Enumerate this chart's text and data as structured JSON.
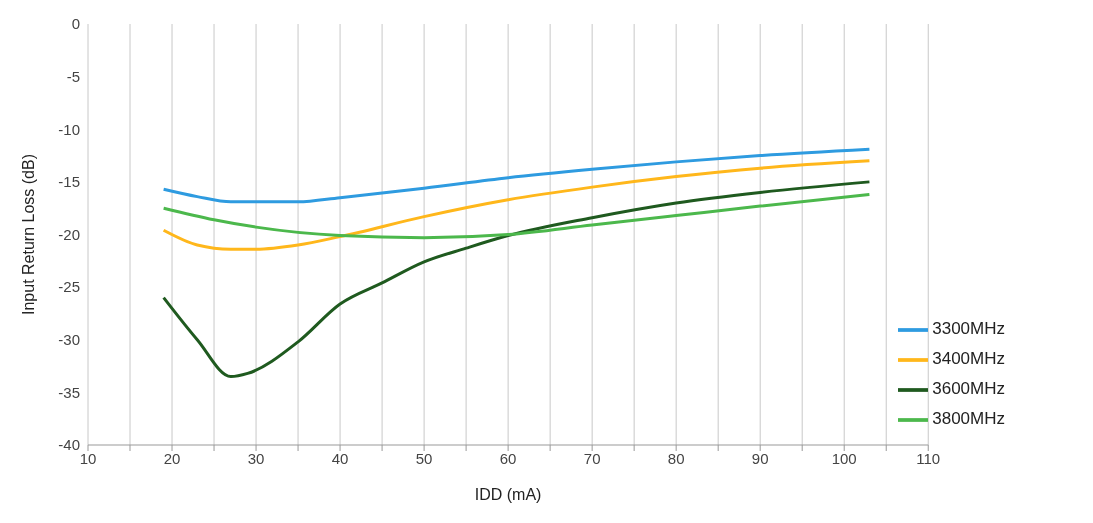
{
  "chart_data": {
    "type": "line",
    "xlabel": "IDD (mA)",
    "ylabel": "Input Return Loss (dB)",
    "xlim": [
      10,
      110
    ],
    "xticks": [
      10,
      {
        "value": 15,
        "label": null
      },
      20,
      {
        "value": 25,
        "label": null
      },
      30,
      {
        "value": 35,
        "label": null
      },
      40,
      {
        "value": 45,
        "label": null
      },
      50,
      {
        "value": 55,
        "label": null
      },
      60,
      {
        "value": 65,
        "label": null
      },
      70,
      {
        "value": 75,
        "label": null
      },
      80,
      {
        "value": 85,
        "label": null
      },
      90,
      {
        "value": 95,
        "label": null
      },
      100,
      {
        "value": 105,
        "label": null
      },
      110
    ],
    "ylim": [
      -40,
      0
    ],
    "yticks": [
      -40,
      -35,
      -30,
      -25,
      -20,
      -15,
      -10,
      -5,
      0
    ],
    "grid": "x",
    "legend": "bottom right",
    "marker": "none",
    "line_style": "solid",
    "series": [
      {
        "name": "3300MHz",
        "color": "#2e9be0",
        "x": [
          19,
          23,
          27,
          35,
          40,
          50,
          60,
          70,
          80,
          90,
          103
        ],
        "values": [
          -15.7,
          -16.4,
          -16.9,
          -16.9,
          -16.5,
          -15.6,
          -14.6,
          -13.8,
          -13.1,
          -12.5,
          -11.9
        ]
      },
      {
        "name": "3400MHz",
        "color": "#ffb71b",
        "x": [
          19,
          23,
          27,
          30,
          35,
          40,
          50,
          60,
          70,
          80,
          90,
          103
        ],
        "values": [
          -19.6,
          -21,
          -21.4,
          -21.4,
          -21,
          -20.2,
          -18.3,
          -16.7,
          -15.5,
          -14.5,
          -13.7,
          -13.0
        ]
      },
      {
        "name": "3600MHz",
        "color": "#1f5a1f",
        "x": [
          19,
          23,
          27,
          29,
          35,
          40,
          45,
          50,
          55,
          60,
          70,
          80,
          90,
          103
        ],
        "values": [
          -26,
          -30,
          -33.5,
          -33.2,
          -30.2,
          -26.6,
          -24.6,
          -22.6,
          -21.3,
          -20.1,
          -18.4,
          -17.0,
          -16,
          -15
        ]
      },
      {
        "name": "3800MHz",
        "color": "#4cb84c",
        "x": [
          19,
          25,
          30,
          40,
          50,
          60,
          70,
          80,
          90,
          103
        ],
        "values": [
          -17.5,
          -18.6,
          -19.3,
          -20.1,
          -20.3,
          -20,
          -19.1,
          -18.2,
          -17.3,
          -16.2
        ]
      }
    ]
  }
}
